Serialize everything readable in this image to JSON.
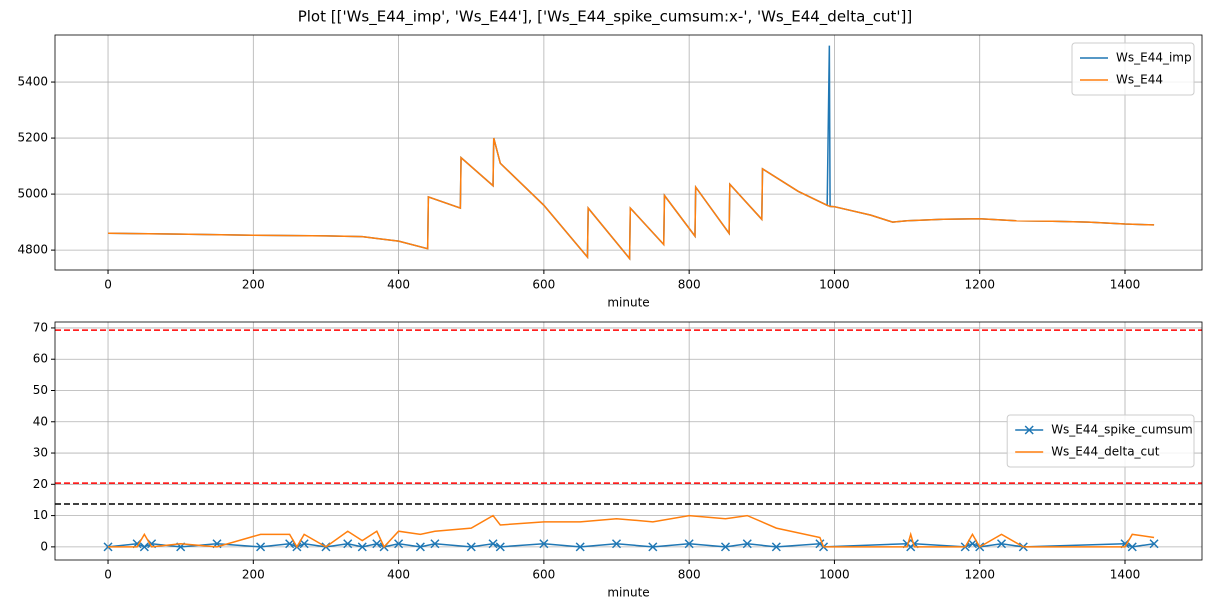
{
  "title": "Plot [['Ws_E44_imp', 'Ws_E44'], ['Ws_E44_spike_cumsum:x-', 'Ws_E44_delta_cut']]",
  "chart_data": [
    {
      "type": "line",
      "xlabel": "minute",
      "grid": true,
      "legend": "upper right",
      "xlim": [
        -73,
        1506
      ],
      "ylim": [
        4729,
        5568
      ],
      "xticks": [
        0,
        200,
        400,
        600,
        800,
        1000,
        1200,
        1400
      ],
      "yticks": [
        4800,
        5000,
        5200,
        5400
      ],
      "x": [
        0,
        100,
        200,
        300,
        350,
        400,
        440,
        441,
        485,
        486,
        530,
        531,
        540,
        600,
        660,
        661,
        718,
        719,
        765,
        766,
        808,
        809,
        855,
        856,
        900,
        901,
        950,
        990,
        993,
        994,
        1000,
        1050,
        1080,
        1100,
        1150,
        1200,
        1250,
        1300,
        1350,
        1400,
        1440
      ],
      "series": [
        {
          "name": "Ws_E44_imp",
          "color": "#1f77b4",
          "values": [
            4860,
            4857,
            4853,
            4851,
            4848,
            4832,
            4805,
            4990,
            4950,
            5130,
            5030,
            5200,
            5110,
            4960,
            4775,
            4950,
            4770,
            4950,
            4820,
            4995,
            4850,
            5025,
            4860,
            5035,
            4910,
            5090,
            5010,
            4960,
            5530,
            4956,
            4955,
            4925,
            4900,
            4905,
            4910,
            4912,
            4905,
            4903,
            4900,
            4893,
            4890
          ]
        },
        {
          "name": "Ws_E44",
          "color": "#ff7f0e",
          "values": [
            4860,
            4857,
            4853,
            4851,
            4848,
            4832,
            4805,
            4990,
            4950,
            5130,
            5030,
            5200,
            5110,
            4960,
            4775,
            4950,
            4770,
            4950,
            4820,
            4995,
            4850,
            5025,
            4860,
            5035,
            4910,
            5090,
            5010,
            4960,
            4957,
            4956,
            4955,
            4925,
            4900,
            4905,
            4910,
            4912,
            4905,
            4903,
            4900,
            4893,
            4890
          ]
        }
      ]
    },
    {
      "type": "line",
      "xlabel": "minute",
      "grid": true,
      "legend": "center right",
      "xlim": [
        -73,
        1506
      ],
      "ylim": [
        -4.2,
        71.9
      ],
      "xticks": [
        0,
        200,
        400,
        600,
        800,
        1000,
        1200,
        1400
      ],
      "yticks": [
        0,
        10,
        20,
        30,
        40,
        50,
        60,
        70
      ],
      "hlines": [
        {
          "value": 69.3,
          "color": "#ff0000"
        },
        {
          "value": 20.4,
          "color": "#ff0000"
        },
        {
          "value": 13.7,
          "color": "#000000"
        }
      ],
      "x": [
        0,
        40,
        50,
        60,
        100,
        150,
        210,
        250,
        260,
        270,
        300,
        330,
        350,
        370,
        380,
        400,
        430,
        450,
        500,
        530,
        540,
        600,
        650,
        700,
        750,
        800,
        850,
        880,
        920,
        980,
        985,
        1100,
        1105,
        1110,
        1180,
        1190,
        1200,
        1230,
        1260,
        1400,
        1410,
        1440
      ],
      "series": [
        {
          "name": "Ws_E44_spike_cumsum",
          "color": "#1f77b4",
          "marker": "x",
          "values": [
            0,
            1,
            0,
            1,
            0,
            1,
            0,
            1,
            0,
            1,
            0,
            1,
            0,
            1,
            0,
            1,
            0,
            1,
            0,
            1,
            0,
            1,
            0,
            1,
            0,
            1,
            0,
            1,
            0,
            1,
            0,
            1,
            0,
            1,
            0,
            1,
            0,
            1,
            0,
            1,
            0,
            1
          ]
        },
        {
          "name": "Ws_E44_delta_cut",
          "color": "#ff7f0e",
          "values": [
            0,
            0,
            4,
            0,
            1,
            0,
            4,
            4,
            0,
            4,
            0,
            5,
            2,
            5,
            0,
            5,
            4,
            5,
            6,
            10,
            7,
            8,
            8,
            9,
            8,
            10,
            9,
            10,
            6,
            3,
            0,
            0,
            4,
            0,
            0,
            4,
            0,
            4,
            0,
            0,
            4,
            3
          ]
        }
      ]
    }
  ]
}
